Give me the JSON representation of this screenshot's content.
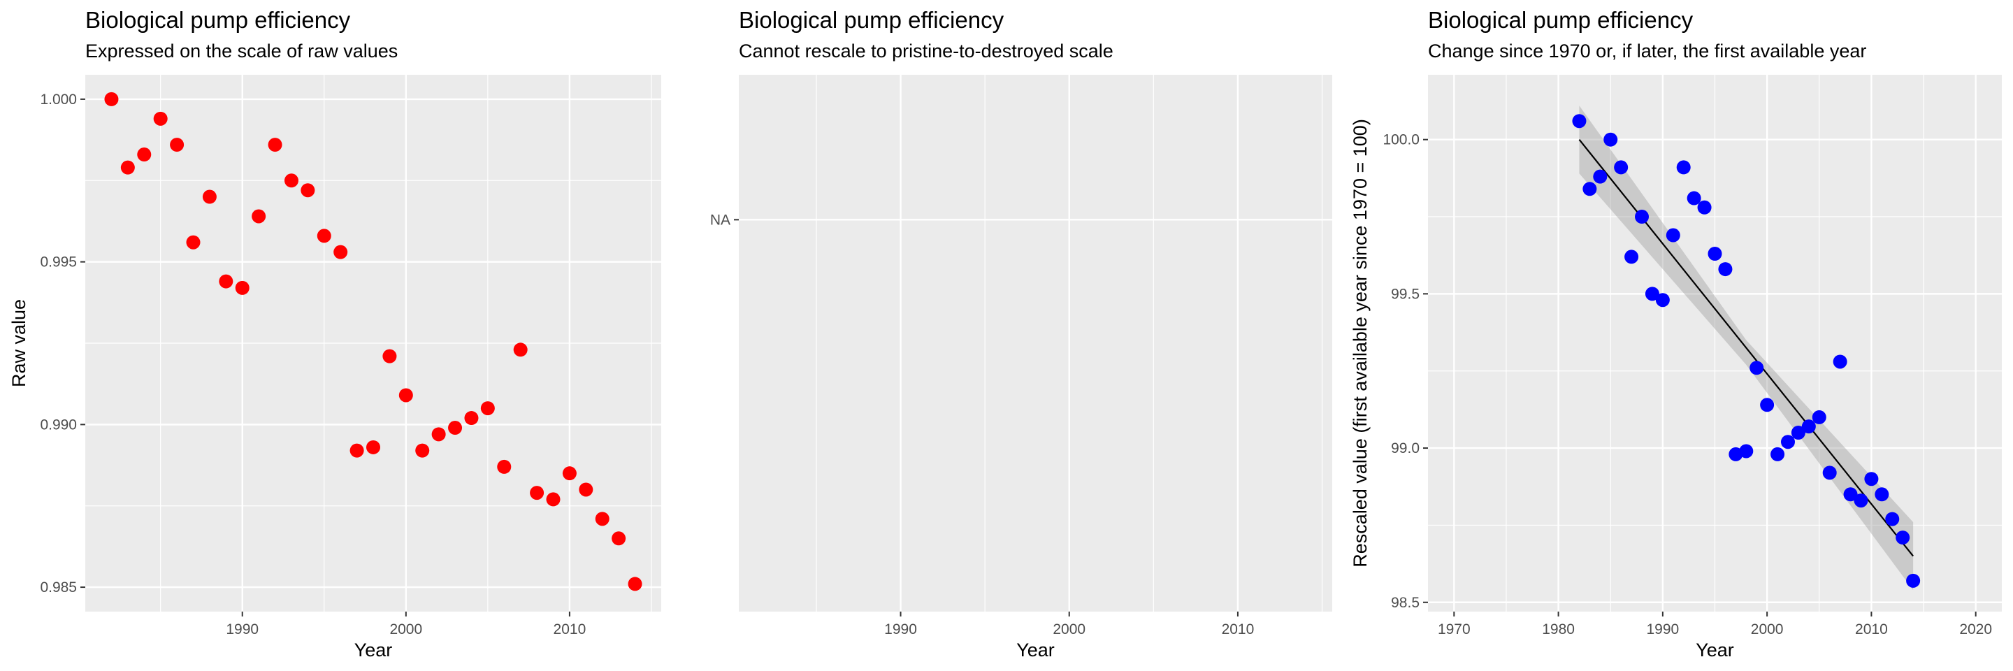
{
  "chart_data": [
    {
      "type": "scatter",
      "title": "Biological pump efficiency",
      "subtitle": "Expressed on the scale of raw values",
      "xlabel": "Year",
      "ylabel": "Raw value",
      "xlim": [
        1980.4,
        2015.6
      ],
      "ylim": [
        0.98425,
        1.00075
      ],
      "xticks": [
        1990,
        2000,
        2010
      ],
      "yticks": [
        0.985,
        0.99,
        0.995,
        1.0
      ],
      "ytick_labels": [
        "0.985",
        "0.990",
        "0.995",
        "1.000"
      ],
      "point_color": "#ff0000",
      "grid": true,
      "x": [
        1982,
        1983,
        1984,
        1985,
        1986,
        1987,
        1988,
        1989,
        1990,
        1991,
        1992,
        1993,
        1994,
        1995,
        1996,
        1997,
        1998,
        1999,
        2000,
        2001,
        2002,
        2003,
        2004,
        2005,
        2006,
        2007,
        2008,
        2009,
        2010,
        2011,
        2012,
        2013,
        2014
      ],
      "y": [
        1.0,
        0.9979,
        0.9983,
        0.9994,
        0.9986,
        0.9956,
        0.997,
        0.9944,
        0.9942,
        0.9964,
        0.9986,
        0.9975,
        0.9972,
        0.9958,
        0.9953,
        0.9892,
        0.9893,
        0.9921,
        0.9909,
        0.9892,
        0.9897,
        0.9899,
        0.9902,
        0.9905,
        0.9887,
        0.9923,
        0.9879,
        0.9877,
        0.9885,
        0.988,
        0.9871,
        0.9865,
        0.9851
      ]
    },
    {
      "type": "scatter",
      "title": "Biological pump efficiency",
      "subtitle": "Cannot rescale to pristine-to-destroyed scale",
      "xlabel": "Year",
      "ylabel": "",
      "xlim": [
        1980.4,
        2015.6
      ],
      "xticks": [
        1990,
        2000,
        2010
      ],
      "ytick_labels": [
        "NA"
      ],
      "grid": true,
      "x": [],
      "y": []
    },
    {
      "type": "scatter",
      "title": "Biological pump efficiency",
      "subtitle": "Change since 1970 or, if later, the first available year",
      "xlabel": "Year",
      "ylabel": "Rescaled value (first available year since 1970 = 100)",
      "xlim": [
        1967.5,
        2022.5
      ],
      "ylim": [
        98.47,
        100.21
      ],
      "xticks": [
        1970,
        1980,
        1990,
        2000,
        2010,
        2020
      ],
      "yticks": [
        98.5,
        99.0,
        99.5,
        100.0
      ],
      "ytick_labels": [
        "98.5",
        "99.0",
        "99.5",
        "100.0"
      ],
      "point_color": "#0000ff",
      "trend_color": "#000000",
      "ribbon_color": "#999999",
      "grid": true,
      "x": [
        1982,
        1983,
        1984,
        1985,
        1986,
        1987,
        1988,
        1989,
        1990,
        1991,
        1992,
        1993,
        1994,
        1995,
        1996,
        1997,
        1998,
        1999,
        2000,
        2001,
        2002,
        2003,
        2004,
        2005,
        2006,
        2007,
        2008,
        2009,
        2010,
        2011,
        2012,
        2013,
        2014
      ],
      "y": [
        100.06,
        99.84,
        99.88,
        100.0,
        99.91,
        99.62,
        99.75,
        99.5,
        99.48,
        99.69,
        99.91,
        99.81,
        99.78,
        99.63,
        99.58,
        98.98,
        98.99,
        99.26,
        99.14,
        98.98,
        99.02,
        99.05,
        99.07,
        99.1,
        98.92,
        99.28,
        98.85,
        98.83,
        98.9,
        98.85,
        98.77,
        98.71,
        98.57
      ],
      "trend": {
        "x": [
          1982,
          2014
        ],
        "y": [
          100.0,
          98.65
        ]
      },
      "ribbon": {
        "x": [
          1982,
          1998,
          2014
        ],
        "upper": [
          100.11,
          99.35,
          98.76
        ],
        "lower": [
          99.89,
          99.27,
          98.54
        ]
      }
    }
  ]
}
